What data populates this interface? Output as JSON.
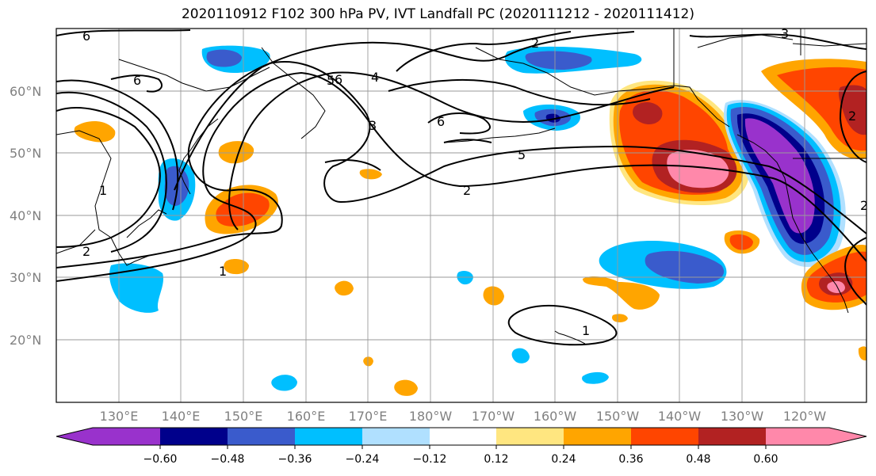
{
  "title": "2020110912 F102 300 hPa PV, IVT Landfall PC (2020111212 - 2020111412)",
  "lat_labels": [
    "60°N",
    "50°N",
    "40°N",
    "30°N",
    "20°N"
  ],
  "lon_labels": [
    "130°E",
    "140°E",
    "150°E",
    "160°E",
    "170°E",
    "180°W",
    "170°W",
    "160°W",
    "150°W",
    "140°W",
    "130°W",
    "120°W"
  ],
  "colorbar": {
    "ticks": [
      "−0.60",
      "−0.48",
      "−0.36",
      "−0.24",
      "−0.12",
      "0.12",
      "0.24",
      "0.36",
      "0.48",
      "0.60"
    ],
    "colors": [
      "#9932CC",
      "#00008B",
      "#3A5BCC",
      "#00BFFF",
      "#B0E0FF",
      "#FFFFFF",
      "#FFE680",
      "#FFA500",
      "#FF4500",
      "#B22222",
      "#FF88AA"
    ]
  },
  "contour_labels": [
    "6",
    "6",
    "6",
    "5",
    "4",
    "3",
    "2",
    "2",
    "1",
    "2",
    "1",
    "2",
    "3",
    "5",
    "6",
    "1",
    "2"
  ]
}
